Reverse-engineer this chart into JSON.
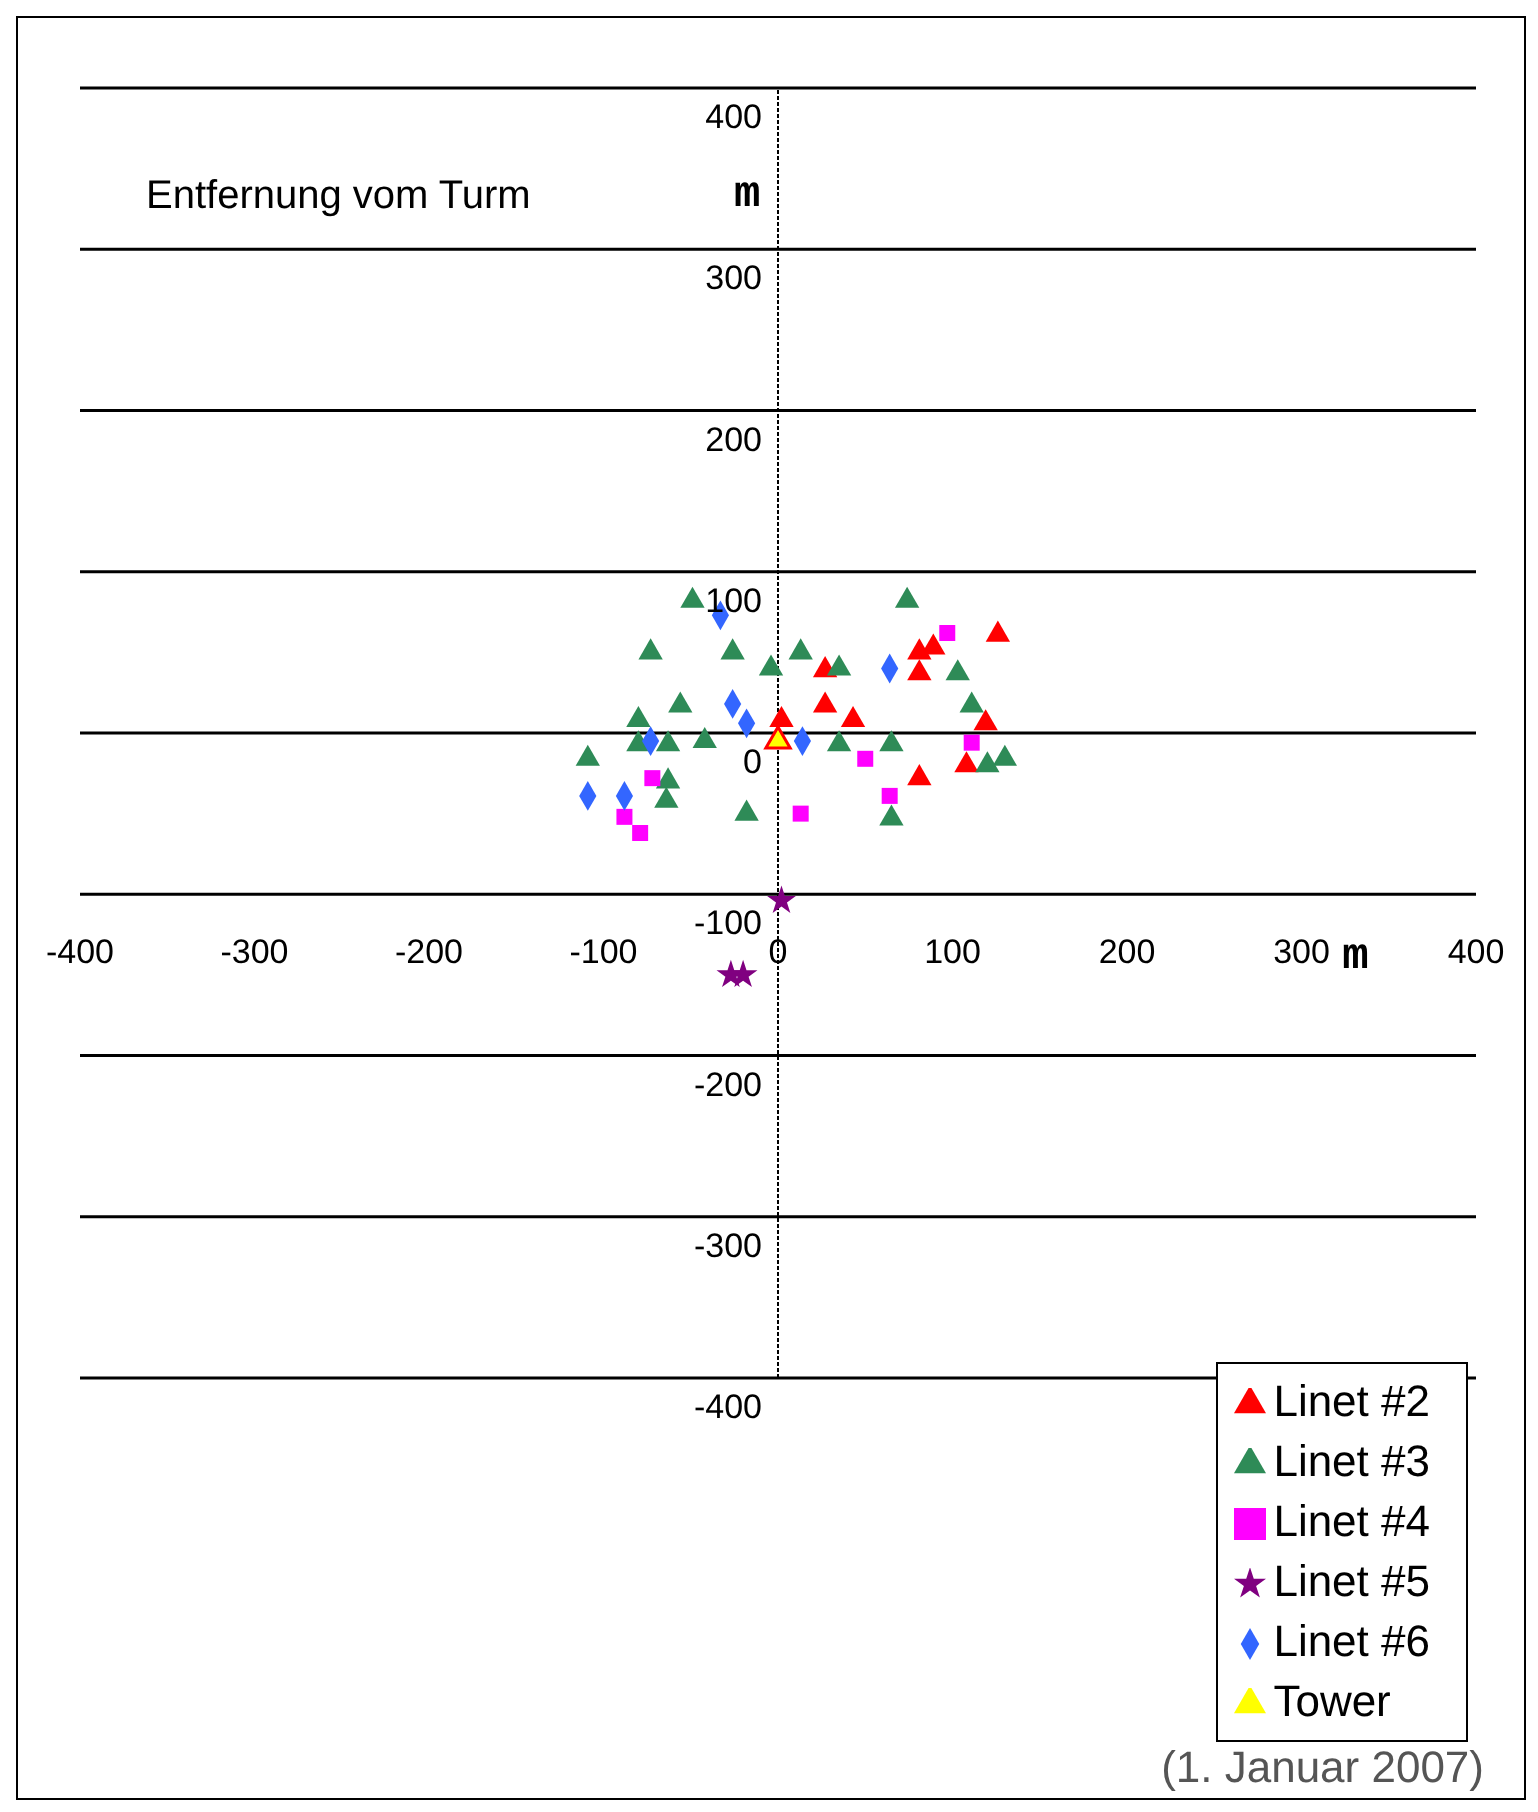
{
  "chart_data": {
    "type": "scatter",
    "title": "Entfernung vom Turm",
    "xlabel": "m",
    "ylabel": "m",
    "annotations": [
      "(1. Januar 2007)"
    ],
    "xlim": [
      -400,
      400
    ],
    "ylim": [
      -400,
      400
    ],
    "xticks": [
      -400,
      -300,
      -200,
      -100,
      0,
      100,
      200,
      300,
      400
    ],
    "yticks": [
      -400,
      -300,
      -200,
      -100,
      0,
      100,
      200,
      300,
      400
    ],
    "grid": "y",
    "legend": "bottom right",
    "ref_lines": [
      {
        "axis": "x",
        "value": 0
      }
    ],
    "series": [
      {
        "name": "Tower",
        "color": "#ffff00",
        "marker": "triangle",
        "x": [
          0
        ],
        "values": [
          -5
        ]
      },
      {
        "name": "Linet #2",
        "color": "#ff0000",
        "marker": "triangle",
        "x": [
          126,
          81,
          89,
          81,
          27,
          27,
          43,
          2,
          119,
          108,
          81
        ],
        "values": [
          61,
          50,
          53,
          37,
          39,
          17,
          8,
          8,
          6,
          -20,
          -28
        ]
      },
      {
        "name": "Linet #3",
        "color": "#2e8b57",
        "marker": "triangle",
        "x": [
          -49,
          74,
          -73,
          -26,
          13,
          -4,
          35,
          103,
          -56,
          111,
          -80,
          -42,
          -80,
          -63,
          35,
          65,
          -109,
          -63,
          -64,
          -18,
          65,
          130,
          120
        ],
        "values": [
          82,
          82,
          50,
          50,
          50,
          40,
          40,
          37,
          17,
          17,
          8,
          -5,
          -7,
          -7,
          -7,
          -7,
          -16,
          -30,
          -42,
          -50,
          -53,
          -16,
          -20
        ]
      },
      {
        "name": "Linet #4",
        "color": "#ff00ff",
        "marker": "square",
        "x": [
          97,
          50,
          111,
          64,
          13,
          -72,
          -88,
          -79
        ],
        "values": [
          62,
          -16,
          -6,
          -39,
          -50,
          -28,
          -52,
          -62
        ]
      },
      {
        "name": "Linet #5",
        "color": "#800080",
        "marker": "star",
        "x": [
          2,
          -27,
          -20
        ],
        "values": [
          -104,
          -150,
          -150
        ]
      },
      {
        "name": "Linet #6",
        "color": "#3366ff",
        "marker": "diamond",
        "x": [
          -33,
          64,
          -26,
          -18,
          -73,
          14,
          -109,
          -88
        ],
        "values": [
          73,
          40,
          18,
          6,
          -5,
          -5,
          -39,
          -39
        ]
      }
    ]
  }
}
